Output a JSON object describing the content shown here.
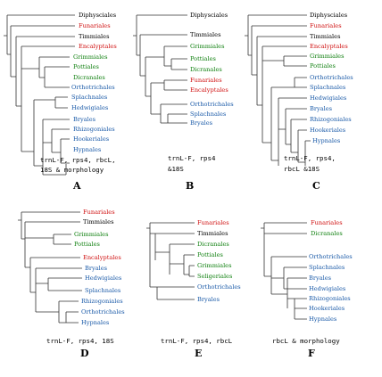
{
  "colors": {
    "black": "#000000",
    "red": "#d01010",
    "green": "#108010",
    "blue": "#1a5aa8",
    "line": "#333333"
  },
  "panels": [
    {
      "letter": "A",
      "caption": [
        "trnL-F, rps4, rbcL,",
        "18S & morphology"
      ],
      "taxa": [
        {
          "name": "Diphysciales",
          "color": "black"
        },
        {
          "name": "Funariales",
          "color": "red"
        },
        {
          "name": "Timmiales",
          "color": "black"
        },
        {
          "name": "Encalyptales",
          "color": "red"
        },
        {
          "name": "Grimmiales",
          "color": "green"
        },
        {
          "name": "Pottiales",
          "color": "green"
        },
        {
          "name": "Dicranales",
          "color": "green"
        },
        {
          "name": "Orthotrichales",
          "color": "blue"
        },
        {
          "name": "Splachnales",
          "color": "blue"
        },
        {
          "name": "Hedwigiales",
          "color": "blue"
        },
        {
          "name": "Bryales",
          "color": "blue"
        },
        {
          "name": "Rhizogoniales",
          "color": "blue"
        },
        {
          "name": "Hookeriales",
          "color": "blue"
        },
        {
          "name": "Hypnales",
          "color": "blue"
        }
      ]
    },
    {
      "letter": "B",
      "caption": [
        "trnL-F, rps4",
        "&18S"
      ],
      "taxa": [
        {
          "name": "Diphysciales",
          "color": "black"
        },
        {
          "name": "Timmiales",
          "color": "black"
        },
        {
          "name": "Grimmiales",
          "color": "green"
        },
        {
          "name": "Pottiales",
          "color": "green"
        },
        {
          "name": "Dicranales",
          "color": "green"
        },
        {
          "name": "Funariales",
          "color": "red"
        },
        {
          "name": "Encalyptales",
          "color": "red"
        },
        {
          "name": "Orthotrichales",
          "color": "blue"
        },
        {
          "name": "Splachnales",
          "color": "blue"
        },
        {
          "name": "Bryales",
          "color": "blue"
        }
      ]
    },
    {
      "letter": "C",
      "caption": [
        "trnL-F, rps4,",
        "rbcL &18S"
      ],
      "taxa": [
        {
          "name": "Diphysciales",
          "color": "black"
        },
        {
          "name": "Funariales",
          "color": "red"
        },
        {
          "name": "Timmiales",
          "color": "black"
        },
        {
          "name": "Encalyptales",
          "color": "red"
        },
        {
          "name": "Grimmiales",
          "color": "green"
        },
        {
          "name": "Pottiales",
          "color": "green"
        },
        {
          "name": "Orthotrichales",
          "color": "blue"
        },
        {
          "name": "Splachnales",
          "color": "blue"
        },
        {
          "name": "Hedwigiales",
          "color": "blue"
        },
        {
          "name": "Bryales",
          "color": "blue"
        },
        {
          "name": "Rhizogoniales",
          "color": "blue"
        },
        {
          "name": "Hookeriales",
          "color": "blue"
        },
        {
          "name": "Hypnales",
          "color": "blue"
        }
      ]
    },
    {
      "letter": "D",
      "caption": [
        "trnL-F, rps4, 18S"
      ],
      "taxa": [
        {
          "name": "Funariales",
          "color": "red"
        },
        {
          "name": "Timmiales",
          "color": "black"
        },
        {
          "name": "Grimmiales",
          "color": "green"
        },
        {
          "name": "Pottiales",
          "color": "green"
        },
        {
          "name": "Encalyptales",
          "color": "red"
        },
        {
          "name": "Bryales",
          "color": "blue"
        },
        {
          "name": "Hedwigiales",
          "color": "blue"
        },
        {
          "name": "Splachnales",
          "color": "blue"
        },
        {
          "name": "Rhizogoniales",
          "color": "blue"
        },
        {
          "name": "Orthotrichales",
          "color": "blue"
        },
        {
          "name": "Hypnales",
          "color": "blue"
        }
      ]
    },
    {
      "letter": "E",
      "caption": [
        "trnL-F, rps4, rbcL"
      ],
      "taxa": [
        {
          "name": "Funariales",
          "color": "red"
        },
        {
          "name": "Timmiales",
          "color": "black"
        },
        {
          "name": "Dicranales",
          "color": "green"
        },
        {
          "name": "Pottiales",
          "color": "green"
        },
        {
          "name": "Grimmiales",
          "color": "green"
        },
        {
          "name": "Seligeriales",
          "color": "green"
        },
        {
          "name": "Orthotrichales",
          "color": "blue"
        },
        {
          "name": "Bryales",
          "color": "blue"
        }
      ]
    },
    {
      "letter": "F",
      "caption": [
        "rbcL & morphology"
      ],
      "taxa": [
        {
          "name": "Funariales",
          "color": "red"
        },
        {
          "name": "Dicranales",
          "color": "green"
        },
        {
          "name": "Orthotrichales",
          "color": "blue"
        },
        {
          "name": "Splachnales",
          "color": "blue"
        },
        {
          "name": "Bryales",
          "color": "blue"
        },
        {
          "name": "Hedwigiales",
          "color": "blue"
        },
        {
          "name": "Rhizogoniales",
          "color": "blue"
        },
        {
          "name": "Hookeriales",
          "color": "blue"
        },
        {
          "name": "Hypnales",
          "color": "blue"
        }
      ]
    }
  ]
}
